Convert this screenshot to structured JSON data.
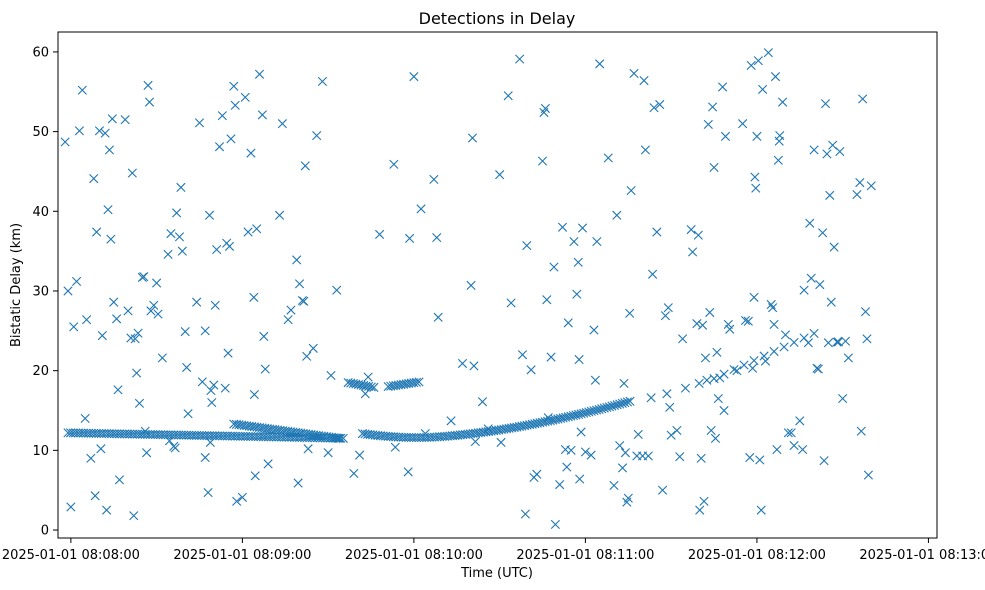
{
  "chart_data": {
    "type": "scatter",
    "title": "Detections in Delay",
    "xlabel": "Time (UTC)",
    "ylabel": "Bistatic Delay (km)",
    "marker": "x",
    "color": "#1f77b4",
    "xlim_seconds": [
      -4.5,
      303
    ],
    "ylim": [
      -1.0,
      62.5
    ],
    "x_ticks": [
      {
        "t": 0,
        "label": "2025-01-01 08:08:00"
      },
      {
        "t": 60,
        "label": "2025-01-01 08:09:00"
      },
      {
        "t": 120,
        "label": "2025-01-01 08:10:00"
      },
      {
        "t": 180,
        "label": "2025-01-01 08:11:00"
      },
      {
        "t": 240,
        "label": "2025-01-01 08:12:00"
      },
      {
        "t": 300,
        "label": "2025-01-01 08:13:00"
      }
    ],
    "y_ticks": [
      0,
      10,
      20,
      30,
      40,
      50,
      60
    ],
    "x_units": "seconds after 2025-01-01 08:08:00 UTC",
    "tracks": [
      {
        "name": "main-track-1",
        "t_start": -1,
        "t_end": 96,
        "step": 0.9,
        "curve": "arc",
        "d_start": 12.2,
        "d_mid": 11.8,
        "d_end": 11.5
      },
      {
        "name": "main-track-2",
        "t_start": 57,
        "t_end": 94,
        "step": 0.9,
        "curve": "linear",
        "d_start": 13.3,
        "d_end": 11.5
      },
      {
        "name": "main-track-3",
        "t_start": 102,
        "t_end": 196,
        "step": 0.9,
        "curve": "quad",
        "d_start": 12.1,
        "d_min": 11.6,
        "t_min": 122,
        "d_end": 16.2
      },
      {
        "name": "upper-track-a",
        "t_start": 97,
        "t_end": 106,
        "step": 0.9,
        "curve": "linear",
        "d_start": 18.5,
        "d_end": 17.9
      },
      {
        "name": "upper-track-b",
        "t_start": 111,
        "t_end": 122,
        "step": 0.9,
        "curve": "linear",
        "d_start": 18.0,
        "d_end": 18.6
      },
      {
        "name": "rising-track",
        "t_start": 225,
        "t_end": 262,
        "step": 3.5,
        "curve": "linear",
        "d_start": 19.0,
        "d_end": 25.0
      }
    ],
    "clutter_points": [
      [
        -2,
        48.7
      ],
      [
        -1,
        30
      ],
      [
        0,
        2.9
      ],
      [
        1,
        25.5
      ],
      [
        2,
        31.2
      ],
      [
        3,
        50.1
      ],
      [
        4,
        55.2
      ],
      [
        5,
        14
      ],
      [
        5.5,
        26.4
      ],
      [
        7,
        9
      ],
      [
        8,
        44.1
      ],
      [
        8.5,
        4.3
      ],
      [
        9,
        37.4
      ],
      [
        10,
        50.1
      ],
      [
        10.5,
        10.2
      ],
      [
        11,
        24.4
      ],
      [
        12,
        49.8
      ],
      [
        12.5,
        2.5
      ],
      [
        13,
        40.2
      ],
      [
        13.5,
        47.7
      ],
      [
        14,
        36.5
      ],
      [
        14.5,
        51.6
      ],
      [
        15,
        28.6
      ],
      [
        16,
        26.5
      ],
      [
        16.5,
        17.6
      ],
      [
        17,
        6.3
      ],
      [
        19,
        51.5
      ],
      [
        20,
        27.5
      ],
      [
        21,
        24.1
      ],
      [
        21.5,
        44.8
      ],
      [
        22,
        1.8
      ],
      [
        22.5,
        24
      ],
      [
        23,
        19.7
      ],
      [
        23.5,
        24.7
      ],
      [
        24,
        15.9
      ],
      [
        25,
        31.7
      ],
      [
        25.5,
        31.8
      ],
      [
        26,
        12.4
      ],
      [
        26.5,
        9.7
      ],
      [
        27,
        55.8
      ],
      [
        27.5,
        53.7
      ],
      [
        28,
        27.5
      ],
      [
        29,
        28.2
      ],
      [
        30,
        31
      ],
      [
        30.5,
        27.1
      ],
      [
        32,
        21.6
      ],
      [
        34,
        34.6
      ],
      [
        34.5,
        11.2
      ],
      [
        35,
        37.2
      ],
      [
        36,
        10.5
      ],
      [
        36.5,
        10.3
      ],
      [
        37,
        39.8
      ],
      [
        38,
        36.8
      ],
      [
        38.5,
        43
      ],
      [
        39,
        35
      ],
      [
        40,
        24.9
      ],
      [
        40.5,
        20.4
      ],
      [
        41,
        14.6
      ],
      [
        44,
        28.6
      ],
      [
        45,
        51.1
      ],
      [
        46,
        18.6
      ],
      [
        47,
        25
      ],
      [
        47,
        9.1
      ],
      [
        48,
        4.7
      ],
      [
        48.5,
        39.5
      ],
      [
        48.8,
        11
      ],
      [
        49,
        17.5
      ],
      [
        49.3,
        16
      ],
      [
        50,
        18.2
      ],
      [
        50.5,
        28.2
      ],
      [
        51,
        35.2
      ],
      [
        52,
        48.1
      ],
      [
        53,
        52
      ],
      [
        54,
        17.8
      ],
      [
        54.5,
        36
      ],
      [
        55,
        22.2
      ],
      [
        55.5,
        35.6
      ],
      [
        56,
        49.1
      ],
      [
        57,
        55.7
      ],
      [
        57.5,
        53.3
      ],
      [
        58,
        3.6
      ],
      [
        60,
        4.1
      ],
      [
        61,
        54.3
      ],
      [
        62,
        37.4
      ],
      [
        63,
        47.3
      ],
      [
        64,
        29.2
      ],
      [
        64.5,
        6.8
      ],
      [
        65,
        37.8
      ],
      [
        66,
        57.2
      ],
      [
        67,
        52.1
      ],
      [
        67.5,
        24.3
      ],
      [
        68,
        20.2
      ],
      [
        69,
        8.3
      ],
      [
        64.2,
        17
      ],
      [
        73,
        39.5
      ],
      [
        74,
        51
      ],
      [
        76,
        26.4
      ],
      [
        77,
        27.6
      ],
      [
        79,
        33.9
      ],
      [
        79.5,
        5.9
      ],
      [
        80,
        30.9
      ],
      [
        81,
        28.8
      ],
      [
        81.5,
        28.7
      ],
      [
        82,
        45.7
      ],
      [
        82.5,
        21.8
      ],
      [
        83,
        10.2
      ],
      [
        84.8,
        22.8
      ],
      [
        86,
        49.5
      ],
      [
        88,
        56.3
      ],
      [
        90,
        9.7
      ],
      [
        91,
        19.4
      ],
      [
        93,
        30.1
      ],
      [
        99,
        7.1
      ],
      [
        101,
        9.4
      ],
      [
        103,
        17.1
      ],
      [
        104,
        19.2
      ],
      [
        108,
        37.1
      ],
      [
        113,
        45.9
      ],
      [
        113.5,
        10.4
      ],
      [
        118,
        7.3
      ],
      [
        118.5,
        36.6
      ],
      [
        120,
        56.9
      ],
      [
        122.5,
        40.3
      ],
      [
        124,
        12.1
      ],
      [
        127,
        44
      ],
      [
        128,
        36.7
      ],
      [
        128.5,
        26.7
      ],
      [
        133,
        13.7
      ],
      [
        137,
        20.9
      ],
      [
        140,
        30.7
      ],
      [
        140.5,
        49.2
      ],
      [
        141,
        20.6
      ],
      [
        141.5,
        11.1
      ],
      [
        144,
        16.1
      ],
      [
        146,
        12.7
      ],
      [
        150,
        44.6
      ],
      [
        150.5,
        11
      ],
      [
        153,
        54.5
      ],
      [
        154,
        28.5
      ],
      [
        157,
        59.1
      ],
      [
        158,
        22
      ],
      [
        159,
        2
      ],
      [
        159.5,
        35.7
      ],
      [
        161,
        20.1
      ],
      [
        162,
        6.6
      ],
      [
        163,
        7
      ],
      [
        165,
        46.3
      ],
      [
        165.5,
        52.4
      ],
      [
        166,
        52.9
      ],
      [
        166.5,
        28.9
      ],
      [
        167,
        14.1
      ],
      [
        168,
        21.7
      ],
      [
        169,
        33
      ],
      [
        169.5,
        0.7
      ],
      [
        171,
        5.7
      ],
      [
        172,
        38
      ],
      [
        173,
        10.1
      ],
      [
        173.5,
        7.9
      ],
      [
        174,
        26
      ],
      [
        175,
        10
      ],
      [
        176,
        36.2
      ],
      [
        177,
        29.6
      ],
      [
        177.5,
        33.6
      ],
      [
        177.8,
        21.4
      ],
      [
        178,
        6.4
      ],
      [
        178.5,
        12.3
      ],
      [
        179,
        37.9
      ],
      [
        180,
        9.8
      ],
      [
        182,
        9.4
      ],
      [
        183,
        25.1
      ],
      [
        183.5,
        18.8
      ],
      [
        184,
        36.2
      ],
      [
        185,
        58.5
      ],
      [
        188,
        46.7
      ],
      [
        190,
        5.6
      ],
      [
        191,
        39.5
      ],
      [
        192,
        10.6
      ],
      [
        193,
        7.8
      ],
      [
        193.5,
        18.4
      ],
      [
        194,
        9.7
      ],
      [
        194.5,
        3.5
      ],
      [
        195,
        4
      ],
      [
        195.5,
        27.2
      ],
      [
        196,
        42.6
      ],
      [
        197,
        57.3
      ],
      [
        198,
        9.3
      ],
      [
        198.5,
        12
      ],
      [
        200,
        9.3
      ],
      [
        200.5,
        56.4
      ],
      [
        201,
        47.7
      ],
      [
        202,
        9.3
      ],
      [
        203,
        16.6
      ],
      [
        203.5,
        32.1
      ],
      [
        204,
        53
      ],
      [
        205,
        37.4
      ],
      [
        206,
        53.4
      ],
      [
        207,
        5
      ],
      [
        208,
        26.9
      ],
      [
        208.5,
        17.1
      ],
      [
        209,
        27.9
      ],
      [
        209.5,
        15.4
      ],
      [
        210,
        11.9
      ],
      [
        212,
        12.5
      ],
      [
        213,
        9.2
      ],
      [
        214,
        24
      ],
      [
        215,
        17.8
      ],
      [
        217,
        37.7
      ],
      [
        217.5,
        34.9
      ],
      [
        219,
        25.9
      ],
      [
        219.5,
        37
      ],
      [
        219.8,
        18.4
      ],
      [
        220,
        2.5
      ],
      [
        220.5,
        9
      ],
      [
        221,
        25.7
      ],
      [
        221.5,
        3.6
      ],
      [
        222,
        21.6
      ],
      [
        222.5,
        18.8
      ],
      [
        223,
        50.9
      ],
      [
        223.5,
        27.3
      ],
      [
        224,
        12.5
      ],
      [
        224.5,
        53.1
      ],
      [
        225,
        45.5
      ],
      [
        225.5,
        11.5
      ],
      [
        226,
        22.3
      ],
      [
        226.5,
        16.5
      ],
      [
        227,
        19.1
      ],
      [
        228,
        55.6
      ],
      [
        228.5,
        15
      ],
      [
        229,
        49.4
      ],
      [
        230,
        25.8
      ],
      [
        230.5,
        25.2
      ],
      [
        233,
        20
      ],
      [
        235,
        51
      ],
      [
        236,
        26.3
      ],
      [
        237,
        26.2
      ],
      [
        237.5,
        9.1
      ],
      [
        238,
        58.3
      ],
      [
        238.5,
        20.3
      ],
      [
        239,
        29.2
      ],
      [
        239.3,
        44.3
      ],
      [
        239.6,
        42.9
      ],
      [
        240,
        49.4
      ],
      [
        240.5,
        58.9
      ],
      [
        241,
        8.8
      ],
      [
        241.5,
        2.5
      ],
      [
        242,
        55.3
      ],
      [
        243,
        21.2
      ],
      [
        244,
        59.9
      ],
      [
        245,
        28.3
      ],
      [
        245.5,
        27.9
      ],
      [
        246,
        25.8
      ],
      [
        246.5,
        56.9
      ],
      [
        247,
        10.1
      ],
      [
        247.5,
        46.4
      ],
      [
        247.8,
        48.8
      ],
      [
        248,
        49.5
      ],
      [
        249,
        53.7
      ],
      [
        250,
        24.5
      ],
      [
        251,
        12.2
      ],
      [
        252,
        12.2
      ],
      [
        253,
        10.6
      ],
      [
        255,
        13.7
      ],
      [
        256,
        10.1
      ],
      [
        256.5,
        30.1
      ],
      [
        258,
        23.5
      ],
      [
        258.5,
        38.5
      ],
      [
        259,
        31.6
      ],
      [
        260,
        47.7
      ],
      [
        261,
        20.3
      ],
      [
        261.5,
        20.2
      ],
      [
        262,
        30.8
      ],
      [
        263,
        37.3
      ],
      [
        263.5,
        8.7
      ],
      [
        264,
        53.5
      ],
      [
        264.5,
        47.2
      ],
      [
        265,
        23.5
      ],
      [
        265.5,
        42
      ],
      [
        266,
        28.6
      ],
      [
        266.5,
        48.3
      ],
      [
        267,
        35.5
      ],
      [
        268,
        23.6
      ],
      [
        268.5,
        23.6
      ],
      [
        269,
        47.5
      ],
      [
        270,
        16.5
      ],
      [
        271,
        23.7
      ],
      [
        272,
        21.6
      ],
      [
        275,
        42.1
      ],
      [
        276,
        43.6
      ],
      [
        276.5,
        12.4
      ],
      [
        277,
        54.1
      ],
      [
        278,
        27.4
      ],
      [
        278.5,
        24
      ],
      [
        279,
        6.9
      ],
      [
        280,
        43.2
      ]
    ]
  }
}
